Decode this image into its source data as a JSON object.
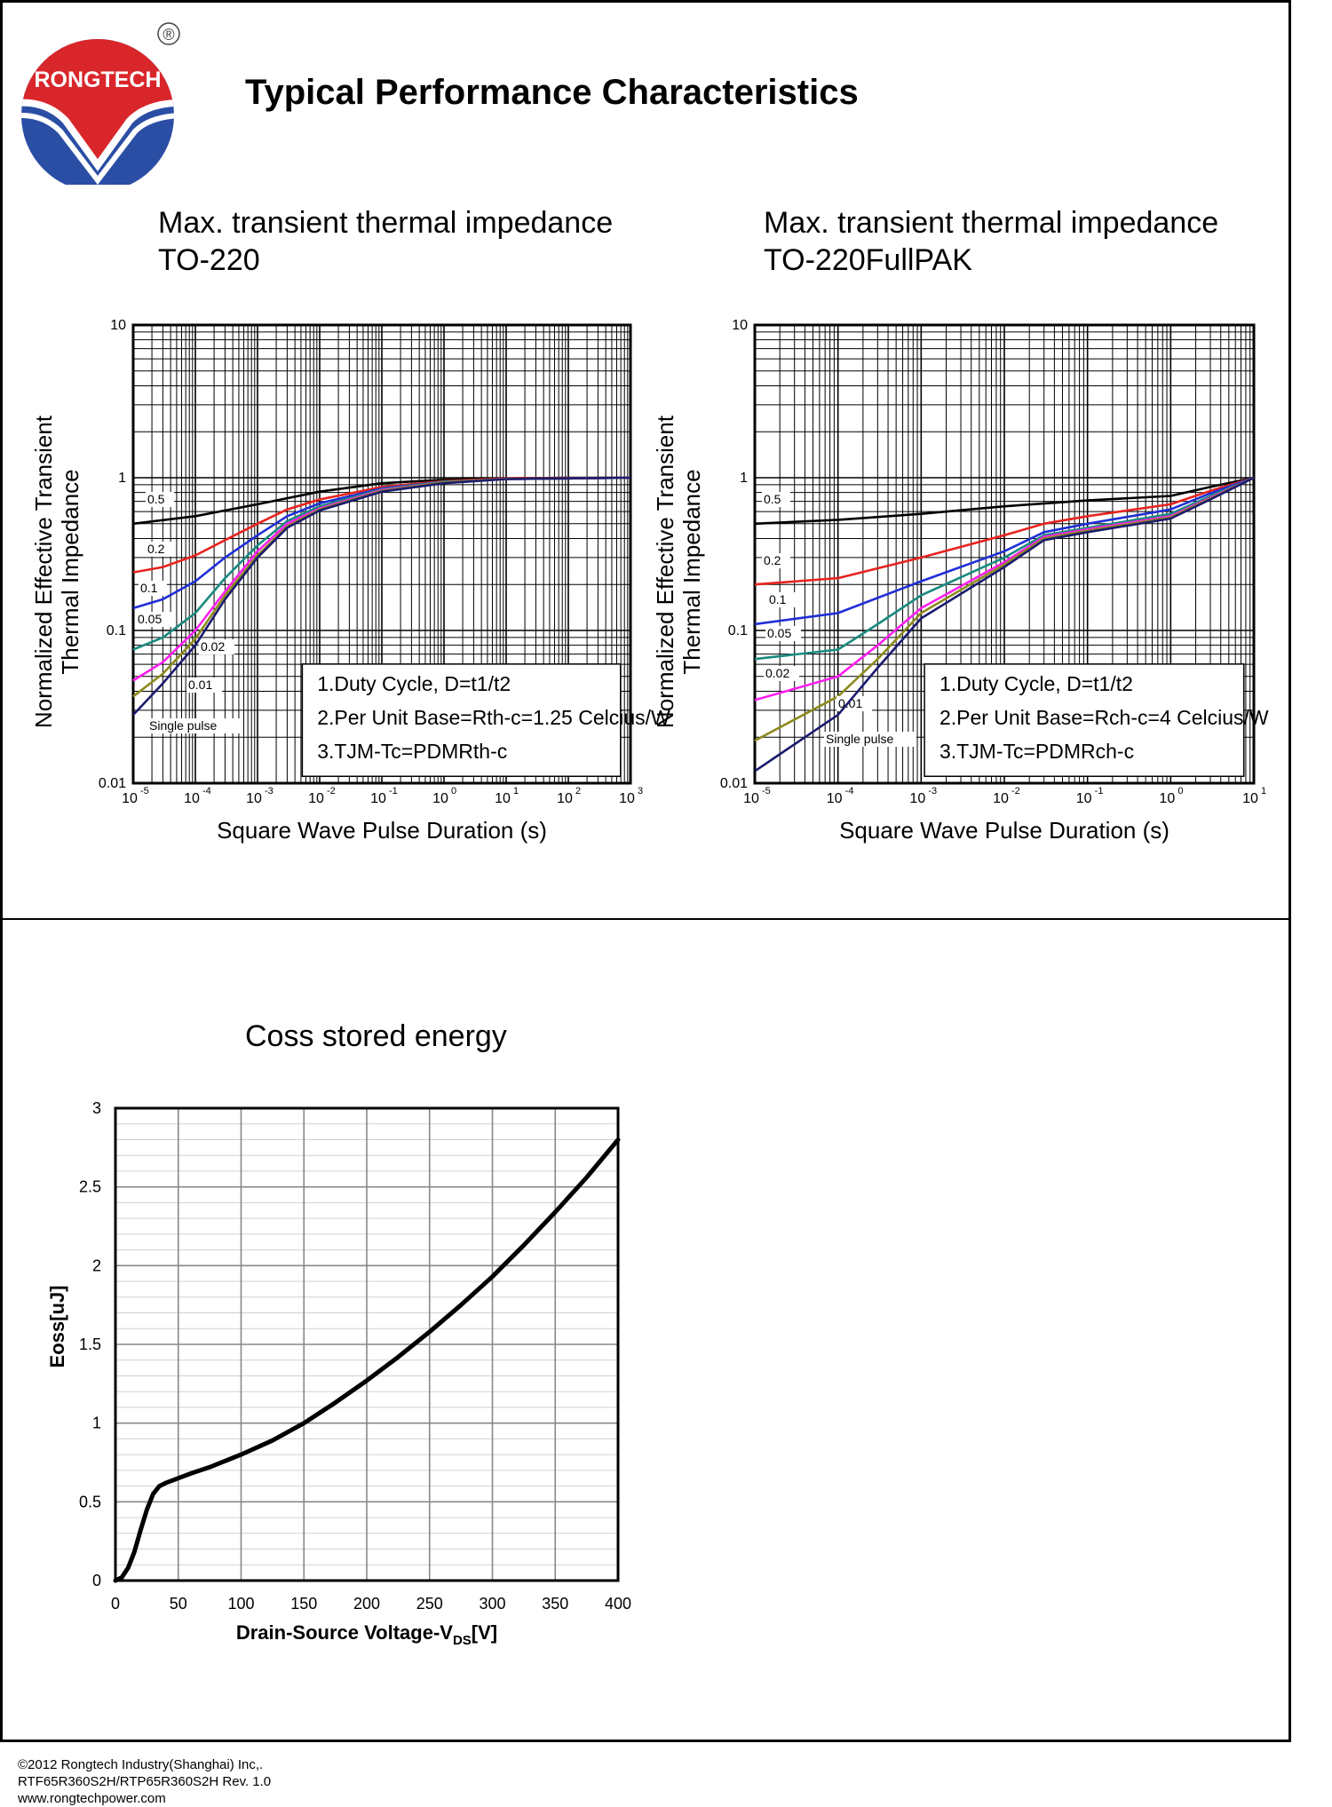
{
  "header": {
    "brand": "RONGTECH",
    "registered": "®",
    "title": "Typical Performance Characteristics"
  },
  "footer": {
    "line1": "©2012 Rongtech Industry(Shanghai) Inc,.",
    "line2": "RTF65R360S2H/RTP65R360S2H Rev. 1.0",
    "line3": "www.rongtechpower.com"
  },
  "colors": {
    "series": [
      "#000000",
      "#e8231e",
      "#1f2fd6",
      "#1a8a80",
      "#ff1ef0",
      "#8c8a1e",
      "#1b1b6e"
    ],
    "logo_red": "#d9262b",
    "logo_blue": "#2b4ea5"
  },
  "chart_data": [
    {
      "type": "line",
      "title": "Max. transient thermal impedance\nTO-220",
      "xlabel": "Square Wave Pulse Duration (s)",
      "ylabel": "Normalized Effective Transient\nThermal Impedance",
      "xscale": "log",
      "yscale": "log",
      "xlim": [
        1e-05,
        1000
      ],
      "ylim": [
        0.01,
        10
      ],
      "xticks": [
        "-5",
        "-4",
        "-3",
        "-2",
        "-1",
        "0",
        "1",
        "2",
        "3"
      ],
      "yticks": [
        "0.01",
        "0.1",
        "1",
        "10"
      ],
      "grid": true,
      "notes": [
        "1.Duty Cycle, D=t1/t2",
        "2.Per Unit Base=Rth-c=1.25 Celcius/W",
        "3.TJM-Tc=PDMRth-c"
      ],
      "series": [
        {
          "name": "0.5",
          "x": [
            1e-05,
            0.0001,
            0.001,
            0.01,
            0.1,
            1,
            10,
            100,
            1000
          ],
          "y": [
            0.5,
            0.56,
            0.67,
            0.81,
            0.92,
            0.97,
            0.99,
            1.0,
            1.0
          ]
        },
        {
          "name": "0.2",
          "x": [
            1e-05,
            3e-05,
            0.0001,
            0.0003,
            0.001,
            0.003,
            0.01,
            0.1,
            1,
            10,
            1000
          ],
          "y": [
            0.24,
            0.26,
            0.31,
            0.39,
            0.5,
            0.62,
            0.72,
            0.87,
            0.95,
            0.99,
            1.0
          ]
        },
        {
          "name": "0.1",
          "x": [
            1e-05,
            3e-05,
            0.0001,
            0.0003,
            0.001,
            0.003,
            0.01,
            0.1,
            1,
            10,
            1000
          ],
          "y": [
            0.14,
            0.16,
            0.21,
            0.3,
            0.42,
            0.56,
            0.68,
            0.85,
            0.94,
            0.98,
            1.0
          ]
        },
        {
          "name": "0.05",
          "x": [
            1e-05,
            3e-05,
            0.0001,
            0.0003,
            0.001,
            0.003,
            0.01,
            0.1,
            1,
            10,
            1000
          ],
          "y": [
            0.075,
            0.09,
            0.13,
            0.22,
            0.36,
            0.52,
            0.65,
            0.84,
            0.94,
            0.98,
            1.0
          ]
        },
        {
          "name": "0.02",
          "x": [
            1e-05,
            3e-05,
            0.0001,
            0.0003,
            0.001,
            0.003,
            0.01,
            0.1,
            1,
            10,
            1000
          ],
          "y": [
            0.047,
            0.062,
            0.1,
            0.18,
            0.33,
            0.5,
            0.63,
            0.83,
            0.93,
            0.98,
            1.0
          ]
        },
        {
          "name": "0.01",
          "x": [
            1e-05,
            3e-05,
            0.0001,
            0.0003,
            0.001,
            0.003,
            0.01,
            0.1,
            1,
            10,
            1000
          ],
          "y": [
            0.037,
            0.052,
            0.088,
            0.17,
            0.31,
            0.48,
            0.62,
            0.82,
            0.93,
            0.98,
            1.0
          ]
        },
        {
          "name": "Single pulse",
          "x": [
            1e-05,
            3e-05,
            0.0001,
            0.0003,
            0.001,
            0.003,
            0.01,
            0.1,
            1,
            10,
            1000
          ],
          "y": [
            0.028,
            0.045,
            0.08,
            0.16,
            0.3,
            0.47,
            0.61,
            0.81,
            0.92,
            0.98,
            1.0
          ]
        }
      ]
    },
    {
      "type": "line",
      "title": "Max. transient thermal impedance\nTO-220FullPAK",
      "xlabel": "Square Wave Pulse Duration (s)",
      "ylabel": "Normalized Effective Transient\nThermal Impedance",
      "xscale": "log",
      "yscale": "log",
      "xlim": [
        1e-05,
        10
      ],
      "ylim": [
        0.01,
        10
      ],
      "xticks": [
        "-5",
        "-4",
        "-3",
        "-2",
        "-1",
        "0",
        "1"
      ],
      "yticks": [
        "0.01",
        "0.1",
        "1",
        "10"
      ],
      "grid": true,
      "notes": [
        "1.Duty Cycle, D=t1/t2",
        "2.Per Unit Base=Rch-c=4 Celcius/W",
        "3.TJM-Tc=PDMRch-c"
      ],
      "series": [
        {
          "name": "0.5",
          "x": [
            1e-05,
            0.0001,
            0.001,
            0.01,
            0.1,
            1,
            3,
            10
          ],
          "y": [
            0.5,
            0.53,
            0.58,
            0.65,
            0.71,
            0.76,
            0.87,
            1.0
          ]
        },
        {
          "name": "0.2",
          "x": [
            1e-05,
            0.0001,
            0.001,
            0.01,
            0.03,
            0.1,
            1,
            3,
            10
          ],
          "y": [
            0.2,
            0.22,
            0.3,
            0.42,
            0.5,
            0.56,
            0.67,
            0.82,
            1.0
          ]
        },
        {
          "name": "0.1",
          "x": [
            1e-05,
            0.0001,
            0.001,
            0.01,
            0.03,
            0.1,
            1,
            3,
            10
          ],
          "y": [
            0.11,
            0.13,
            0.21,
            0.33,
            0.44,
            0.5,
            0.62,
            0.79,
            1.0
          ]
        },
        {
          "name": "0.05",
          "x": [
            1e-05,
            0.0001,
            0.0003,
            0.001,
            0.01,
            0.03,
            0.1,
            1,
            3,
            10
          ],
          "y": [
            0.065,
            0.075,
            0.11,
            0.17,
            0.3,
            0.42,
            0.47,
            0.58,
            0.76,
            1.0
          ]
        },
        {
          "name": "0.02",
          "x": [
            1e-05,
            0.0001,
            0.0003,
            0.001,
            0.01,
            0.03,
            0.1,
            1,
            3,
            10
          ],
          "y": [
            0.035,
            0.05,
            0.08,
            0.14,
            0.28,
            0.41,
            0.46,
            0.56,
            0.74,
            1.0
          ]
        },
        {
          "name": "0.01",
          "x": [
            1e-05,
            0.0001,
            0.0003,
            0.001,
            0.01,
            0.03,
            0.1,
            1,
            3,
            10
          ],
          "y": [
            0.019,
            0.037,
            0.065,
            0.13,
            0.27,
            0.4,
            0.45,
            0.55,
            0.73,
            1.0
          ]
        },
        {
          "name": "Single pulse",
          "x": [
            1e-05,
            0.0001,
            0.0003,
            0.001,
            0.01,
            0.03,
            0.1,
            1,
            3,
            10
          ],
          "y": [
            0.012,
            0.028,
            0.057,
            0.12,
            0.26,
            0.39,
            0.44,
            0.54,
            0.72,
            1.0
          ]
        }
      ]
    },
    {
      "type": "line",
      "title": "Coss stored energy",
      "xlabel": "Drain-Source Voltage-V",
      "xlabel_sub": "DS",
      "xlabel_unit": "[V]",
      "ylabel": "Eoss[uJ]",
      "xlim": [
        0,
        400
      ],
      "ylim": [
        0,
        3
      ],
      "xticks": [
        "0",
        "50",
        "100",
        "150",
        "200",
        "250",
        "300",
        "350",
        "400"
      ],
      "yticks": [
        "0",
        "0.5",
        "1",
        "1.5",
        "2",
        "2.5",
        "3"
      ],
      "grid": true,
      "series": [
        {
          "name": "",
          "x": [
            0,
            5,
            10,
            15,
            20,
            25,
            30,
            35,
            40,
            50,
            60,
            75,
            100,
            125,
            150,
            175,
            200,
            225,
            250,
            275,
            300,
            325,
            350,
            375,
            400
          ],
          "y": [
            0,
            0.02,
            0.08,
            0.18,
            0.32,
            0.45,
            0.55,
            0.6,
            0.62,
            0.65,
            0.68,
            0.72,
            0.8,
            0.89,
            1.0,
            1.13,
            1.27,
            1.42,
            1.58,
            1.75,
            1.93,
            2.13,
            2.34,
            2.56,
            2.8
          ]
        }
      ]
    }
  ]
}
